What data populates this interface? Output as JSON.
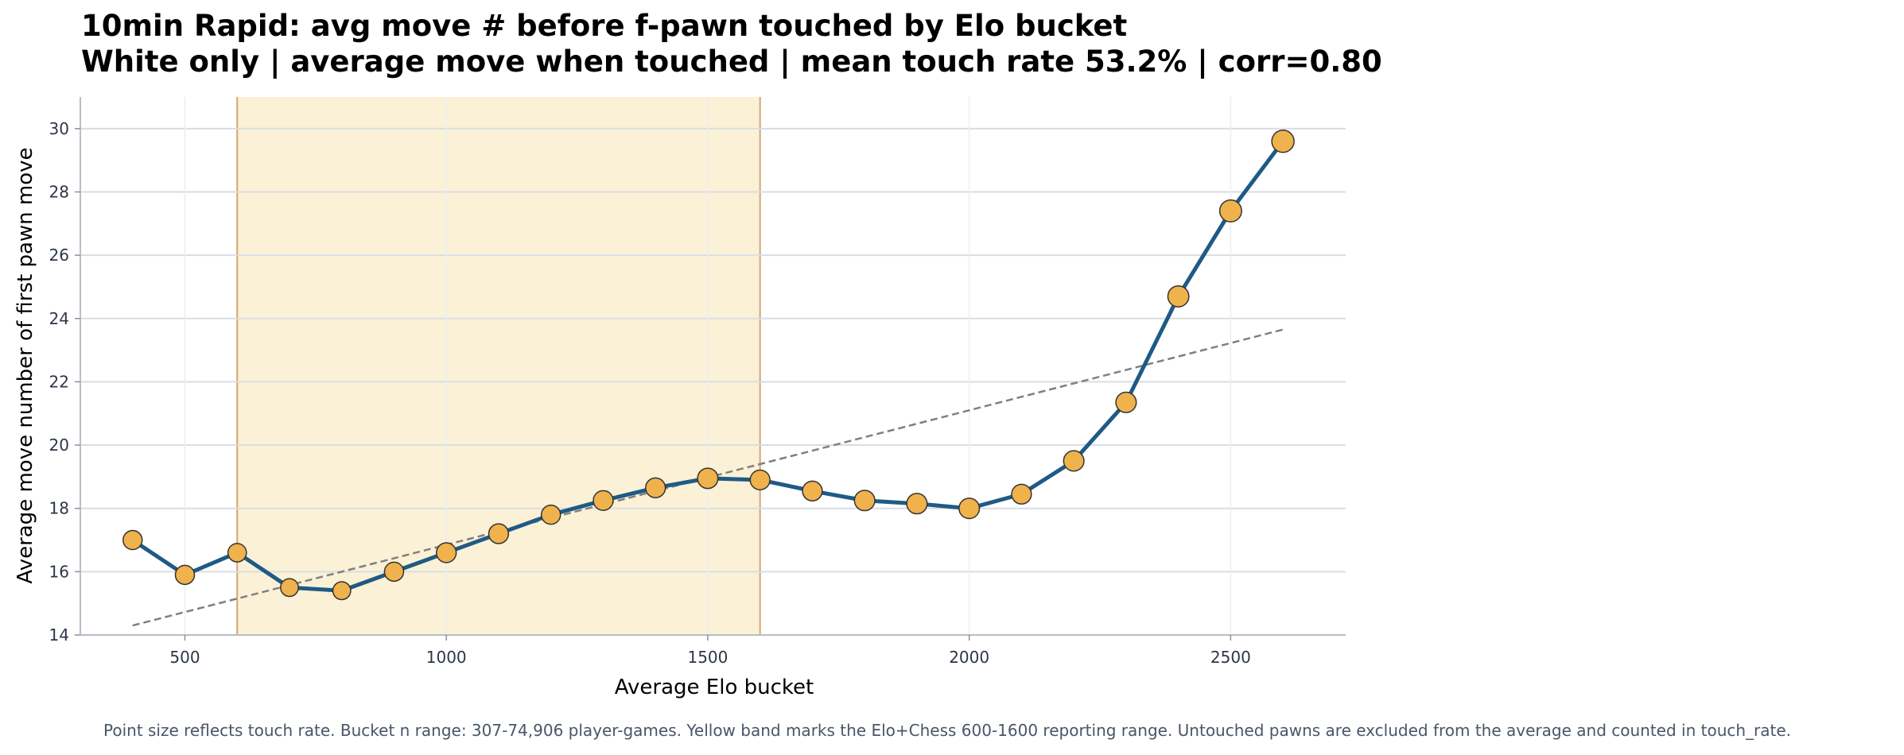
{
  "chart_data": {
    "type": "line",
    "title": "10min Rapid: avg move # before f-pawn touched by Elo bucket",
    "subtitle": "White only | average move when touched | mean touch rate 53.2% | corr=0.80",
    "xlabel": "Average Elo bucket",
    "ylabel": "Average move number of first pawn move",
    "xlim": [
      300,
      2720
    ],
    "ylim": [
      14,
      31
    ],
    "xticks": [
      500,
      1000,
      1500,
      2000,
      2500
    ],
    "yticks": [
      14,
      16,
      18,
      20,
      22,
      24,
      26,
      28,
      30
    ],
    "grid": true,
    "band": {
      "x0": 600,
      "x1": 1600,
      "color": "#fbf1d6"
    },
    "trendline": {
      "x": [
        400,
        2600
      ],
      "y": [
        14.3,
        23.65
      ],
      "style": "dashed"
    },
    "series": [
      {
        "x": [
          400,
          500,
          600,
          700,
          800,
          900,
          1000,
          1100,
          1200,
          1300,
          1400,
          1500,
          1600,
          1700,
          1800,
          1900,
          2000,
          2100,
          2200,
          2300,
          2400,
          2500,
          2600
        ],
        "y": [
          17.0,
          15.9,
          16.6,
          15.5,
          15.4,
          16.0,
          16.6,
          17.2,
          17.8,
          18.25,
          18.65,
          18.95,
          18.9,
          18.55,
          18.25,
          18.15,
          18.0,
          18.45,
          19.5,
          21.35,
          24.7,
          27.4,
          29.6
        ],
        "touch_rate_scaled": [
          0.5,
          0.5,
          0.45,
          0.4,
          0.4,
          0.5,
          0.55,
          0.55,
          0.5,
          0.55,
          0.55,
          0.6,
          0.55,
          0.55,
          0.6,
          0.6,
          0.6,
          0.55,
          0.6,
          0.6,
          0.65,
          0.72,
          0.75
        ]
      }
    ],
    "colors": {
      "line": "#1f5a86",
      "marker": "#f0b24c",
      "marker_edge": "#333333",
      "band_edge": "#d4a574",
      "trend": "#808080",
      "grid": "#d9dde3",
      "tick_text": "#2d3748"
    }
  },
  "footnote": "Point size reflects touch rate. Bucket n range: 307-74,906 player-games. Yellow band marks the Elo+Chess 600-1600 reporting range. Untouched pawns are excluded from the average and counted in touch_rate."
}
